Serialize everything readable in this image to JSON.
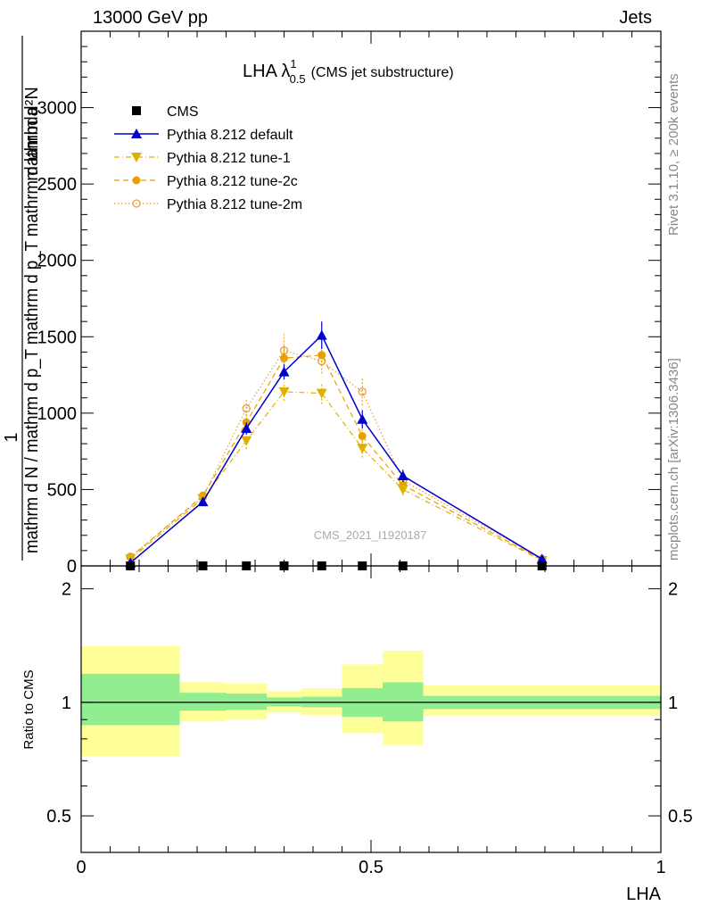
{
  "header": {
    "left": "13000 GeV pp",
    "right": "Jets"
  },
  "side_text": {
    "rivet": "Rivet 3.1.10, ≥ 200k events",
    "mcplots": "mcplots.cern.ch [arXiv:1306.3436]"
  },
  "colors": {
    "cms": "#000000",
    "default": "#0000cc",
    "tune1": "#e0b000",
    "tune2c": "#e8a000",
    "tune2m": "#e0a040",
    "band_inner": "#90ee90",
    "band_outer": "#ffff99"
  },
  "chart_data": [
    {
      "type": "line",
      "title": "LHA λ",
      "title_sup": "1",
      "title_sub": "0.5",
      "title_suffix": "(CMS jet substructure)",
      "analysis_label": "CMS_2021_I1920187",
      "ylabel_main": "mathrm d N / mathrm d p_T mathrm d lambda",
      "ylabel_pre": "1",
      "ylabel_num": "mathrm d²N",
      "ylabel_den": "mathrm d N / mathrm d p_T mathrm d p_T mathrm d lambda",
      "xlim": [
        0,
        1
      ],
      "ylim": [
        0,
        3500
      ],
      "yticks": [
        0,
        500,
        1000,
        1500,
        2000,
        2500,
        3000
      ],
      "ytick_labels": [
        "0",
        "500",
        "1000",
        "1500",
        "2000",
        "2500",
        "3000"
      ],
      "legend_position": "top-left",
      "bin_edges": [
        0.0,
        0.17,
        0.25,
        0.32,
        0.38,
        0.45,
        0.52,
        0.59,
        1.0
      ],
      "x": [
        0.085,
        0.21,
        0.285,
        0.35,
        0.415,
        0.485,
        0.555,
        0.795
      ],
      "series": [
        {
          "name": "CMS",
          "style": "data",
          "marker": "square",
          "values": [
            0,
            0,
            0,
            0,
            0,
            0,
            0,
            0
          ]
        },
        {
          "name": "Pythia 8.212 default",
          "style": "solid",
          "marker": "triangle-up",
          "values": [
            20,
            420,
            900,
            1270,
            1510,
            960,
            590,
            45
          ],
          "errors": [
            10,
            25,
            40,
            50,
            90,
            60,
            40,
            8
          ]
        },
        {
          "name": "Pythia 8.212 tune-1",
          "style": "dashdot",
          "marker": "triangle-down",
          "values": [
            45,
            440,
            820,
            1140,
            1130,
            770,
            500,
            35
          ],
          "errors": [
            10,
            25,
            55,
            60,
            70,
            60,
            40,
            8
          ]
        },
        {
          "name": "Pythia 8.212 tune-2c",
          "style": "dashed",
          "marker": "circle",
          "values": [
            55,
            460,
            940,
            1360,
            1380,
            850,
            530,
            40
          ],
          "errors": [
            10,
            30,
            55,
            70,
            70,
            60,
            40,
            8
          ]
        },
        {
          "name": "Pythia 8.212 tune-2m",
          "style": "dotted",
          "marker": "circle-open",
          "values": [
            60,
            450,
            1030,
            1410,
            1340,
            1140,
            560,
            45
          ],
          "errors": [
            10,
            30,
            70,
            110,
            80,
            90,
            40,
            8
          ]
        }
      ]
    },
    {
      "type": "area",
      "ylabel": "Ratio to CMS",
      "xlabel": "LHA",
      "xlim": [
        0,
        1
      ],
      "ylim": [
        0.4,
        2.3
      ],
      "yscale": "log",
      "yticks": [
        0.5,
        1,
        2
      ],
      "ytick_labels": [
        "0.5",
        "1",
        "2"
      ],
      "xticks": [
        0,
        0.5,
        1
      ],
      "xtick_labels": [
        "0",
        "0.5",
        "1"
      ],
      "bin_edges": [
        0.0,
        0.17,
        0.25,
        0.32,
        0.38,
        0.45,
        0.52,
        0.59,
        1.0
      ],
      "band_inner": [
        [
          0.87,
          1.19
        ],
        [
          0.95,
          1.06
        ],
        [
          0.955,
          1.055
        ],
        [
          0.975,
          1.03
        ],
        [
          0.97,
          1.035
        ],
        [
          0.915,
          1.09
        ],
        [
          0.89,
          1.13
        ],
        [
          0.96,
          1.04
        ]
      ],
      "band_outer": [
        [
          0.72,
          1.41
        ],
        [
          0.89,
          1.13
        ],
        [
          0.9,
          1.12
        ],
        [
          0.94,
          1.07
        ],
        [
          0.925,
          1.09
        ],
        [
          0.83,
          1.26
        ],
        [
          0.77,
          1.37
        ],
        [
          0.92,
          1.11
        ]
      ]
    }
  ]
}
